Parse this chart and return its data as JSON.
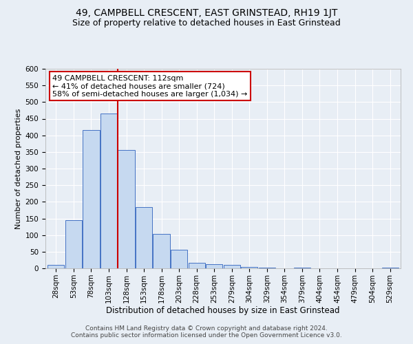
{
  "title": "49, CAMPBELL CRESCENT, EAST GRINSTEAD, RH19 1JT",
  "subtitle": "Size of property relative to detached houses in East Grinstead",
  "xlabel": "Distribution of detached houses by size in East Grinstead",
  "ylabel": "Number of detached properties",
  "footer_line1": "Contains HM Land Registry data © Crown copyright and database right 2024.",
  "footer_line2": "Contains public sector information licensed under the Open Government Licence v3.0.",
  "bar_labels": [
    "28sqm",
    "53sqm",
    "78sqm",
    "103sqm",
    "128sqm",
    "153sqm",
    "178sqm",
    "203sqm",
    "228sqm",
    "253sqm",
    "279sqm",
    "304sqm",
    "329sqm",
    "354sqm",
    "379sqm",
    "404sqm",
    "454sqm",
    "479sqm",
    "504sqm",
    "529sqm"
  ],
  "bar_values": [
    10,
    145,
    415,
    465,
    355,
    185,
    103,
    55,
    17,
    13,
    10,
    5,
    3,
    0,
    3,
    0,
    0,
    0,
    0,
    3
  ],
  "bar_color": "#c6d9f0",
  "bar_edge_color": "#4472c4",
  "ylim": [
    0,
    600
  ],
  "yticks": [
    0,
    50,
    100,
    150,
    200,
    250,
    300,
    350,
    400,
    450,
    500,
    550,
    600
  ],
  "red_line_x": 3.5,
  "annotation_line1": "49 CAMPBELL CRESCENT: 112sqm",
  "annotation_line2": "← 41% of detached houses are smaller (724)",
  "annotation_line3": "58% of semi-detached houses are larger (1,034) →",
  "annotation_box_color": "#ffffff",
  "annotation_box_edge_color": "#cc0000",
  "bg_color": "#e8eef5",
  "plot_bg_color": "#e8eef5",
  "grid_color": "#ffffff",
  "title_fontsize": 10,
  "subtitle_fontsize": 9,
  "xlabel_fontsize": 8.5,
  "ylabel_fontsize": 8,
  "tick_fontsize": 7.5,
  "annotation_fontsize": 8,
  "footer_fontsize": 6.5
}
